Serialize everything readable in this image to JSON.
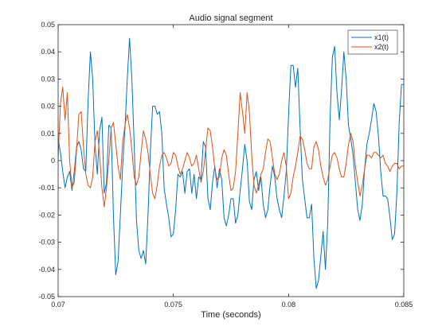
{
  "chart_data": {
    "type": "line",
    "title": "Audio signal segment",
    "xlabel": "Time (seconds)",
    "ylabel": "",
    "xlim": [
      0.07,
      0.085
    ],
    "ylim": [
      -0.05,
      0.05
    ],
    "x_ticks": [
      0.07,
      0.075,
      0.08,
      0.085
    ],
    "x_tick_labels": [
      "0.07",
      "0.075",
      "0.08",
      "0.085"
    ],
    "y_ticks": [
      -0.05,
      -0.04,
      -0.03,
      -0.02,
      -0.01,
      0,
      0.01,
      0.02,
      0.03,
      0.04,
      0.05
    ],
    "y_tick_labels": [
      "-0.05",
      "-0.04",
      "-0.03",
      "-0.02",
      "-0.01",
      "0",
      "0.01",
      "0.02",
      "0.03",
      "0.04",
      "0.05"
    ],
    "grid": false,
    "legend_position": "top-right",
    "series": [
      {
        "name": "x1(t)",
        "color": "#0072BD",
        "x": [
          0.07,
          0.0701,
          0.0702,
          0.0703,
          0.0704,
          0.0705,
          0.0706,
          0.0707,
          0.0708,
          0.0709,
          0.071,
          0.0711,
          0.0712,
          0.0713,
          0.0714,
          0.0715,
          0.0716,
          0.0717,
          0.0718,
          0.0719,
          0.072,
          0.0721,
          0.0722,
          0.0723,
          0.0724,
          0.0725,
          0.0726,
          0.0727,
          0.0728,
          0.0729,
          0.073,
          0.0731,
          0.0732,
          0.0733,
          0.0734,
          0.0735,
          0.0736,
          0.0737,
          0.0738,
          0.0739,
          0.074,
          0.0741,
          0.0742,
          0.0743,
          0.0744,
          0.0745,
          0.0746,
          0.0747,
          0.0748,
          0.0749,
          0.075,
          0.0751,
          0.0752,
          0.0753,
          0.0754,
          0.0755,
          0.0756,
          0.0757,
          0.0758,
          0.0759,
          0.076,
          0.0761,
          0.0762,
          0.0763,
          0.0764,
          0.0765,
          0.0766,
          0.0767,
          0.0768,
          0.0769,
          0.077,
          0.0771,
          0.0772,
          0.0773,
          0.0774,
          0.0775,
          0.0776,
          0.0777,
          0.0778,
          0.0779,
          0.078,
          0.0781,
          0.0782,
          0.0783,
          0.0784,
          0.0785,
          0.0786,
          0.0787,
          0.0788,
          0.0789,
          0.079,
          0.0791,
          0.0792,
          0.0793,
          0.0794,
          0.0795,
          0.0796,
          0.0797,
          0.0798,
          0.0799,
          0.08,
          0.0801,
          0.0802,
          0.0803,
          0.0804,
          0.0805,
          0.0806,
          0.0807,
          0.0808,
          0.0809,
          0.081,
          0.0811,
          0.0812,
          0.0813,
          0.0814,
          0.0815,
          0.0816,
          0.0817,
          0.0818,
          0.0819,
          0.082,
          0.0821,
          0.0822,
          0.0823,
          0.0824,
          0.0825,
          0.0826,
          0.0827,
          0.0828,
          0.0829,
          0.083,
          0.0831,
          0.0832,
          0.0833,
          0.0834,
          0.0835,
          0.0836,
          0.0837,
          0.0838,
          0.0839,
          0.084,
          0.0841,
          0.0842,
          0.0843,
          0.0844,
          0.0845,
          0.0846,
          0.0847,
          0.0848,
          0.0849,
          0.085
        ],
        "values": [
          0.008,
          0.003,
          -0.004,
          -0.01,
          -0.006,
          -0.004,
          -0.011,
          -0.004,
          0.005,
          0.007,
          0.004,
          -0.003,
          -0.004,
          0.022,
          0.04,
          0.03,
          0.006,
          -0.005,
          0.011,
          0.016,
          -0.012,
          -0.008,
          0.013,
          0.012,
          -0.02,
          -0.042,
          -0.037,
          -0.02,
          -0.002,
          0.012,
          0.03,
          0.045,
          0.03,
          0.006,
          -0.022,
          -0.033,
          -0.036,
          -0.033,
          -0.038,
          -0.02,
          0.003,
          0.02,
          0.02,
          0.017,
          0.018,
          0.01,
          -0.01,
          -0.016,
          -0.021,
          -0.028,
          -0.027,
          -0.018,
          -0.005,
          -0.006,
          -0.004,
          -0.012,
          -0.004,
          -0.003,
          -0.012,
          -0.005,
          -0.014,
          -0.006,
          -0.007,
          0.007,
          0.005,
          -0.014,
          -0.018,
          -0.008,
          -0.002,
          -0.01,
          -0.003,
          -0.007,
          -0.021,
          -0.024,
          -0.02,
          -0.014,
          -0.014,
          -0.023,
          -0.02,
          -0.011,
          -0.003,
          0.006,
          0.0,
          -0.015,
          -0.018,
          -0.007,
          -0.004,
          -0.011,
          -0.006,
          -0.016,
          -0.021,
          -0.018,
          -0.009,
          -0.002,
          -0.006,
          -0.014,
          -0.018,
          -0.021,
          -0.013,
          -0.004,
          0.017,
          0.035,
          0.035,
          0.027,
          0.034,
          0.012,
          -0.007,
          -0.014,
          -0.021,
          -0.021,
          -0.016,
          -0.036,
          -0.047,
          -0.044,
          -0.035,
          -0.026,
          -0.04,
          -0.023,
          0.015,
          0.038,
          0.042,
          0.025,
          0.015,
          0.026,
          0.04,
          0.03,
          0.013,
          0.008,
          0.002,
          -0.008,
          -0.018,
          -0.022,
          -0.016,
          -0.003,
          0.006,
          0.01,
          0.015,
          0.021,
          0.018,
          0.009,
          -0.004,
          -0.013,
          -0.013,
          -0.014,
          -0.021,
          -0.029,
          -0.027,
          -0.012,
          0.014,
          0.028,
          0.028
        ]
      },
      {
        "name": "x2(t)",
        "color": "#D95319",
        "x": [
          0.07,
          0.0701,
          0.0702,
          0.0703,
          0.0704,
          0.0705,
          0.0706,
          0.0707,
          0.0708,
          0.0709,
          0.071,
          0.0711,
          0.0712,
          0.0713,
          0.0714,
          0.0715,
          0.0716,
          0.0717,
          0.0718,
          0.0719,
          0.072,
          0.0721,
          0.0722,
          0.0723,
          0.0724,
          0.0725,
          0.0726,
          0.0727,
          0.0728,
          0.0729,
          0.073,
          0.0731,
          0.0732,
          0.0733,
          0.0734,
          0.0735,
          0.0736,
          0.0737,
          0.0738,
          0.0739,
          0.074,
          0.0741,
          0.0742,
          0.0743,
          0.0744,
          0.0745,
          0.0746,
          0.0747,
          0.0748,
          0.0749,
          0.075,
          0.0751,
          0.0752,
          0.0753,
          0.0754,
          0.0755,
          0.0756,
          0.0757,
          0.0758,
          0.0759,
          0.076,
          0.0761,
          0.0762,
          0.0763,
          0.0764,
          0.0765,
          0.0766,
          0.0767,
          0.0768,
          0.0769,
          0.077,
          0.0771,
          0.0772,
          0.0773,
          0.0774,
          0.0775,
          0.0776,
          0.0777,
          0.0778,
          0.0779,
          0.078,
          0.0781,
          0.0782,
          0.0783,
          0.0784,
          0.0785,
          0.0786,
          0.0787,
          0.0788,
          0.0789,
          0.079,
          0.0791,
          0.0792,
          0.0793,
          0.0794,
          0.0795,
          0.0796,
          0.0797,
          0.0798,
          0.0799,
          0.08,
          0.0801,
          0.0802,
          0.0803,
          0.0804,
          0.0805,
          0.0806,
          0.0807,
          0.0808,
          0.0809,
          0.081,
          0.0811,
          0.0812,
          0.0813,
          0.0814,
          0.0815,
          0.0816,
          0.0817,
          0.0818,
          0.0819,
          0.082,
          0.0821,
          0.0822,
          0.0823,
          0.0824,
          0.0825,
          0.0826,
          0.0827,
          0.0828,
          0.0829,
          0.083,
          0.0831,
          0.0832,
          0.0833,
          0.0834,
          0.0835,
          0.0836,
          0.0837,
          0.0838,
          0.0839,
          0.084,
          0.0841,
          0.0842,
          0.0843,
          0.0844,
          0.0845,
          0.0846,
          0.0847,
          0.0848,
          0.0849,
          0.085
        ],
        "values": [
          0.001,
          0.021,
          0.027,
          0.015,
          0.025,
          0.0,
          -0.01,
          -0.008,
          0.004,
          0.017,
          0.018,
          0.005,
          -0.005,
          -0.009,
          -0.01,
          -0.006,
          0.007,
          0.011,
          0.002,
          -0.01,
          -0.017,
          -0.01,
          0.0,
          0.012,
          0.014,
          0.006,
          -0.002,
          -0.007,
          0.007,
          0.013,
          0.017,
          0.012,
          0.004,
          -0.006,
          -0.009,
          -0.006,
          0.003,
          0.011,
          0.008,
          0.003,
          -0.005,
          -0.012,
          -0.014,
          -0.009,
          -0.002,
          0.002,
          0.003,
          0.001,
          -0.002,
          -0.001,
          0.003,
          0.002,
          -0.002,
          -0.005,
          -0.003,
          0.0,
          0.003,
          0.001,
          -0.002,
          -0.001,
          0.002,
          -0.003,
          -0.008,
          -0.004,
          0.004,
          0.012,
          0.011,
          0.005,
          -0.003,
          -0.007,
          -0.006,
          0.001,
          0.004,
          0.002,
          -0.005,
          -0.011,
          -0.01,
          -0.004,
          0.01,
          0.025,
          0.018,
          0.01,
          0.025,
          0.018,
          0.002,
          -0.009,
          -0.012,
          -0.009,
          -0.005,
          -0.003,
          0.003,
          0.008,
          0.007,
          0.001,
          -0.005,
          -0.007,
          -0.005,
          0.0,
          0.003,
          -0.002,
          -0.014,
          -0.012,
          -0.006,
          -0.002,
          0.003,
          0.009,
          0.008,
          0.004,
          -0.001,
          -0.003,
          -0.003,
          0.005,
          0.007,
          0.004,
          -0.002,
          -0.006,
          -0.009,
          -0.007,
          -0.002,
          0.002,
          0.003,
          0.001,
          -0.003,
          -0.006,
          -0.006,
          -0.001,
          0.006,
          0.01,
          0.007,
          -0.002,
          -0.008,
          -0.013,
          -0.009,
          -0.003,
          0.002,
          0.002,
          0.001,
          0.003,
          0.003,
          0.002,
          0.001,
          0.002,
          -0.001,
          -0.002,
          -0.004,
          -0.002,
          -0.001,
          -0.001,
          -0.003,
          -0.002,
          -0.002
        ]
      }
    ]
  }
}
